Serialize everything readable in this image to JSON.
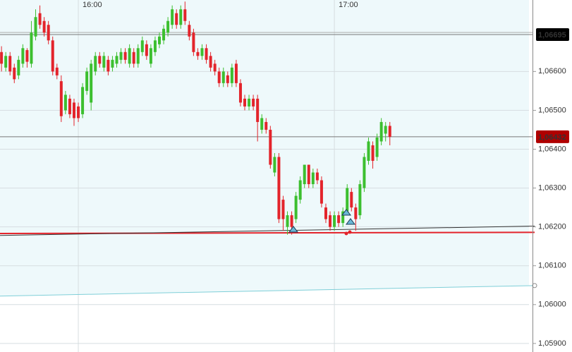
{
  "chart_data": {
    "type": "candlestick",
    "x": [
      942,
      943,
      944,
      945,
      946,
      947,
      948,
      949,
      950,
      951,
      952,
      953,
      954,
      955,
      956,
      957,
      958,
      959,
      960,
      961,
      962,
      963,
      964,
      965,
      966,
      967,
      968,
      969,
      970,
      971,
      972,
      973,
      974,
      975,
      976,
      977,
      978,
      979,
      980,
      981,
      982,
      983,
      984,
      985,
      986,
      987,
      988,
      989,
      990,
      991,
      992,
      993,
      994,
      995,
      996,
      997,
      998,
      999,
      1000,
      1001,
      1002,
      1003,
      1004,
      1005,
      1006,
      1007,
      1008,
      1009,
      1010,
      1011,
      1012,
      1013,
      1014,
      1015,
      1016,
      1017,
      1018,
      1019,
      1020,
      1021,
      1022,
      1023,
      1024,
      1025,
      1026,
      1027,
      1028,
      1029,
      1030,
      1031,
      1032,
      1033
    ],
    "candles": [
      [
        1.0665,
        1.06665,
        1.066,
        1.0662
      ],
      [
        1.0661,
        1.0665,
        1.066,
        1.0664
      ],
      [
        1.0664,
        1.0665,
        1.0659,
        1.066
      ],
      [
        1.0661,
        1.0662,
        1.0657,
        1.0658
      ],
      [
        1.0659,
        1.0664,
        1.0658,
        1.0663
      ],
      [
        1.0662,
        1.0667,
        1.0661,
        1.0666
      ],
      [
        1.06655,
        1.0666,
        1.0661,
        1.06625
      ],
      [
        1.0662,
        1.0673,
        1.0661,
        1.067
      ],
      [
        1.0669,
        1.0676,
        1.0668,
        1.0674
      ],
      [
        1.0675,
        1.0677,
        1.0671,
        1.0672
      ],
      [
        1.0673,
        1.0674,
        1.0669,
        1.067
      ],
      [
        1.0672,
        1.0673,
        1.0667,
        1.0668
      ],
      [
        1.0668,
        1.0669,
        1.0659,
        1.066
      ],
      [
        1.0661,
        1.0662,
        1.0658,
        1.0659
      ],
      [
        1.06575,
        1.0659,
        1.0647,
        1.06485
      ],
      [
        1.065,
        1.0655,
        1.0649,
        1.0654
      ],
      [
        1.0653,
        1.0654,
        1.0648,
        1.0649
      ],
      [
        1.0652,
        1.0653,
        1.0646,
        1.0648
      ],
      [
        1.0651,
        1.0652,
        1.0647,
        1.0648
      ],
      [
        1.0649,
        1.0657,
        1.0648,
        1.0656
      ],
      [
        1.0655,
        1.0661,
        1.0654,
        1.066
      ],
      [
        1.0652,
        1.0663,
        1.065,
        1.0662
      ],
      [
        1.066,
        1.0665,
        1.0659,
        1.0664
      ],
      [
        1.0664,
        1.0665,
        1.0661,
        1.0662
      ],
      [
        1.0661,
        1.0665,
        1.066,
        1.0664
      ],
      [
        1.0663,
        1.0664,
        1.0659,
        1.066
      ],
      [
        1.0661,
        1.0664,
        1.066,
        1.0663
      ],
      [
        1.0662,
        1.0665,
        1.0661,
        1.0664
      ],
      [
        1.0663,
        1.0666,
        1.0662,
        1.0665
      ],
      [
        1.0665,
        1.0666,
        1.0662,
        1.0663
      ],
      [
        1.0662,
        1.0667,
        1.0661,
        1.0666
      ],
      [
        1.0665,
        1.0666,
        1.0661,
        1.0662
      ],
      [
        1.0662,
        1.0667,
        1.0661,
        1.0666
      ],
      [
        1.0665,
        1.0669,
        1.0664,
        1.0668
      ],
      [
        1.0667,
        1.0668,
        1.0663,
        1.0664
      ],
      [
        1.0662,
        1.0667,
        1.0661,
        1.0666
      ],
      [
        1.0665,
        1.0669,
        1.0664,
        1.0668
      ],
      [
        1.0667,
        1.067,
        1.0666,
        1.0669
      ],
      [
        1.0668,
        1.0672,
        1.0667,
        1.0671
      ],
      [
        1.067,
        1.0674,
        1.0669,
        1.0673
      ],
      [
        1.0672,
        1.0677,
        1.0671,
        1.0676
      ],
      [
        1.0675,
        1.0676,
        1.0671,
        1.0672
      ],
      [
        1.0672,
        1.0677,
        1.0671,
        1.0676
      ],
      [
        1.0676,
        1.0678,
        1.0672,
        1.0673
      ],
      [
        1.0672,
        1.0673,
        1.0668,
        1.0669
      ],
      [
        1.067,
        1.0671,
        1.0664,
        1.0665
      ],
      [
        1.0665,
        1.0666,
        1.0663,
        1.0664
      ],
      [
        1.0664,
        1.0667,
        1.0663,
        1.0666
      ],
      [
        1.0666,
        1.0667,
        1.0662,
        1.0663
      ],
      [
        1.0664,
        1.0665,
        1.066,
        1.0661
      ],
      [
        1.0662,
        1.0663,
        1.0659,
        1.066
      ],
      [
        1.066,
        1.0661,
        1.0656,
        1.0657
      ],
      [
        1.0657,
        1.0661,
        1.0656,
        1.066
      ],
      [
        1.0659,
        1.066,
        1.0656,
        1.0657
      ],
      [
        1.0657,
        1.0662,
        1.0656,
        1.0661
      ],
      [
        1.0662,
        1.0663,
        1.0656,
        1.0657
      ],
      [
        1.0657,
        1.0658,
        1.0651,
        1.0652
      ],
      [
        1.0653,
        1.0654,
        1.065,
        1.0651
      ],
      [
        1.0651,
        1.0654,
        1.065,
        1.0653
      ],
      [
        1.0653,
        1.0654,
        1.065,
        1.0651
      ],
      [
        1.0653,
        1.0654,
        1.0642,
        1.0647
      ],
      [
        1.0645,
        1.0649,
        1.0644,
        1.0648
      ],
      [
        1.0647,
        1.0648,
        1.0644,
        1.0645
      ],
      [
        1.0645,
        1.0646,
        1.0635,
        1.0636
      ],
      [
        1.0634,
        1.0639,
        1.0633,
        1.0638
      ],
      [
        1.0638,
        1.0639,
        1.0621,
        1.0622
      ],
      [
        1.0627,
        1.0628,
        1.0619,
        1.0622
      ],
      [
        1.062,
        1.0624,
        1.0618,
        1.0623
      ],
      [
        1.0623,
        1.0624,
        1.0618,
        1.062
      ],
      [
        1.0622,
        1.0629,
        1.0621,
        1.0628
      ],
      [
        1.0627,
        1.0633,
        1.0626,
        1.0632
      ],
      [
        1.0631,
        1.0636,
        1.063,
        1.0636
      ],
      [
        1.0636,
        1.0636,
        1.063,
        1.0631
      ],
      [
        1.0631,
        1.0635,
        1.063,
        1.0634
      ],
      [
        1.0634,
        1.0635,
        1.0631,
        1.0632
      ],
      [
        1.0632,
        1.0633,
        1.0625,
        1.0626
      ],
      [
        1.0625,
        1.0626,
        1.0621,
        1.0622
      ],
      [
        1.0623,
        1.0624,
        1.0619,
        1.062
      ],
      [
        1.062,
        1.0624,
        1.0619,
        1.0623
      ],
      [
        1.0623,
        1.0624,
        1.062,
        1.0621
      ],
      [
        1.0621,
        1.0625,
        1.062,
        1.0624
      ],
      [
        1.0624,
        1.0631,
        1.0623,
        1.063
      ],
      [
        1.0629,
        1.063,
        1.0624,
        1.0625
      ],
      [
        1.0625,
        1.0626,
        1.0619,
        1.0622
      ],
      [
        1.0623,
        1.0632,
        1.0622,
        1.0631
      ],
      [
        1.063,
        1.0639,
        1.0629,
        1.0638
      ],
      [
        1.0637,
        1.0643,
        1.0636,
        1.0642
      ],
      [
        1.0641,
        1.0642,
        1.0635,
        1.0637
      ],
      [
        1.0638,
        1.0644,
        1.0637,
        1.0643
      ],
      [
        1.0642,
        1.0648,
        1.0641,
        1.0647
      ],
      [
        1.0644,
        1.0647,
        1.0642,
        1.0646
      ],
      [
        1.0646,
        1.0647,
        1.0641,
        1.06432
      ]
    ],
    "up_color": "#3cbf2f",
    "down_color": "#e3242b",
    "xlim": [
      941.65,
      1065.6
    ],
    "xticks": [
      {
        "value": 960,
        "label": "16:00"
      },
      {
        "value": 1020,
        "label": "17:00"
      }
    ],
    "ylim": [
      1.05878,
      1.06784
    ],
    "yticks": [
      {
        "value": 1.066,
        "label": "1,06600"
      },
      {
        "value": 1.065,
        "label": "1,06500"
      },
      {
        "value": 1.064,
        "label": "1,06400"
      },
      {
        "value": 1.063,
        "label": "1,06300"
      },
      {
        "value": 1.062,
        "label": "1,06200"
      },
      {
        "value": 1.061,
        "label": "1,06100"
      },
      {
        "value": 1.06,
        "label": "1,06000"
      },
      {
        "value": 1.059,
        "label": "1,05900"
      }
    ],
    "grid": true,
    "price_labels": [
      {
        "value": 1.06695,
        "label": "1,06695",
        "color": "#000000"
      },
      {
        "value": 1.06432,
        "label": "1,06432",
        "color": "#b00000"
      }
    ],
    "trendlines": [
      {
        "color": "#e3242b",
        "y": [
          1.06183,
          1.06186
        ]
      },
      {
        "color": "#333333",
        "y": [
          1.06178,
          1.06202
        ]
      },
      {
        "color": "#7fcfd8",
        "y": [
          1.06022,
          1.06049
        ]
      }
    ]
  }
}
